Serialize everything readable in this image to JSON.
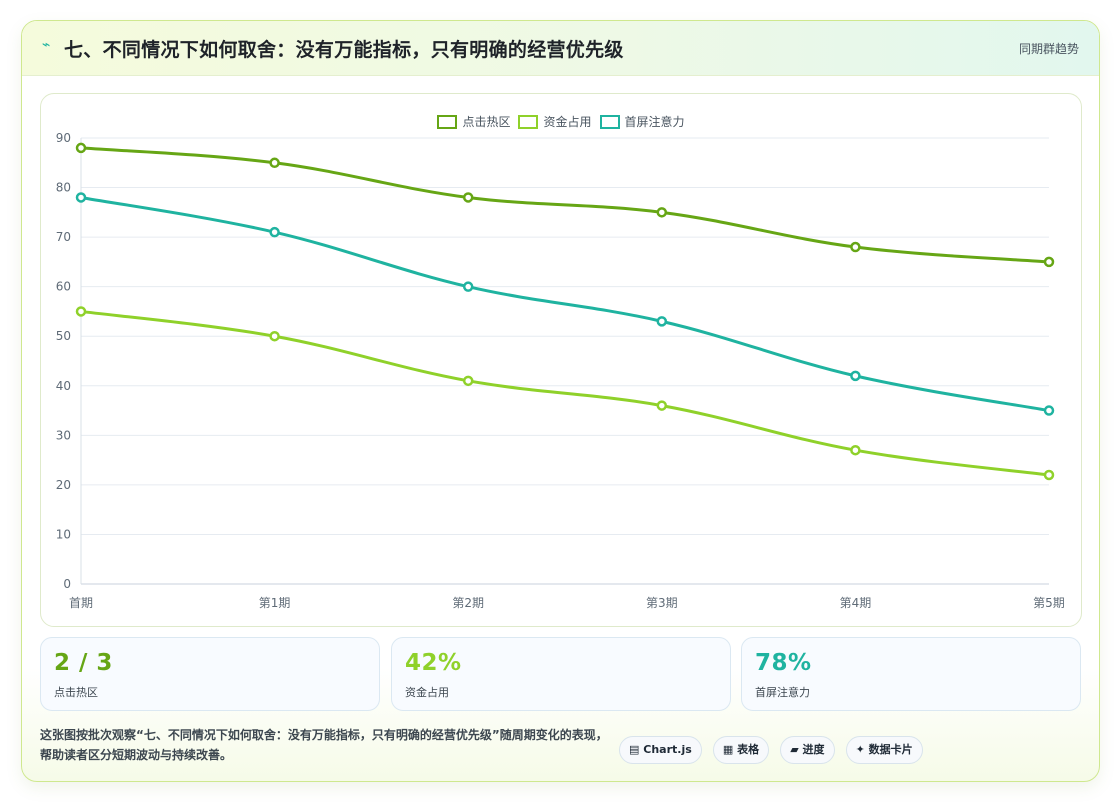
{
  "header": {
    "icon": "⌁",
    "title": "七、不同情况下如何取舍：没有万能指标，只有明确的经营优先级",
    "right_label": "同期群趋势"
  },
  "colors": {
    "series1": "#66a615",
    "series2": "#8fd12a",
    "series3": "#1fb3a0",
    "grid": "#e6ebf1",
    "tick": "#5f6b77"
  },
  "chart_data": {
    "type": "line",
    "x": [
      "首期",
      "第1期",
      "第2期",
      "第3期",
      "第4期",
      "第5期"
    ],
    "series": [
      {
        "name": "点击热区",
        "values": [
          88,
          85,
          78,
          75,
          68,
          65
        ]
      },
      {
        "name": "资金占用",
        "values": [
          55,
          50,
          41,
          36,
          27,
          22
        ]
      },
      {
        "name": "首屏注意力",
        "values": [
          78,
          71,
          60,
          53,
          42,
          35
        ]
      }
    ],
    "ylim": [
      0,
      90
    ],
    "yticks": [
      0,
      10,
      20,
      30,
      40,
      50,
      60,
      70,
      80,
      90
    ],
    "grid": true,
    "legend_position": "top-center"
  },
  "stats": [
    {
      "value": "2 / 3",
      "label": "点击热区",
      "color": "#66a615"
    },
    {
      "value": "42%",
      "label": "资金占用",
      "color": "#8fd12a"
    },
    {
      "value": "78%",
      "label": "首屏注意力",
      "color": "#1fb3a0"
    }
  ],
  "footer": {
    "description": "这张图按批次观察“七、不同情况下如何取舍：没有万能指标，只有明确的经营优先级”随周期变化的表现，帮助读者区分短期波动与持续改善。",
    "chips": [
      {
        "icon": "▤",
        "label": "Chart.js"
      },
      {
        "icon": "▦",
        "label": "表格"
      },
      {
        "icon": "▰",
        "label": "进度"
      },
      {
        "icon": "✦",
        "label": "数据卡片"
      }
    ]
  }
}
